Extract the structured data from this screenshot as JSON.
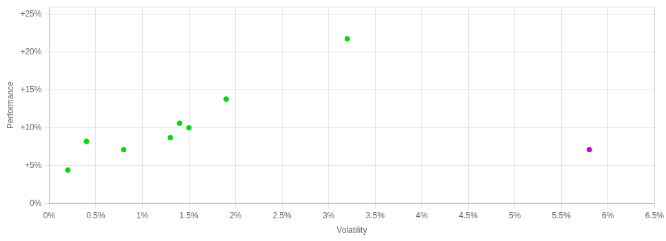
{
  "chart_data": {
    "type": "scatter",
    "x_label": "Volatility",
    "y_label": "Performance",
    "xlim": [
      0,
      0.065
    ],
    "ylim": [
      0,
      0.26
    ],
    "xticks": [
      {
        "value": 0.0,
        "label": "0%"
      },
      {
        "value": 0.005,
        "label": "0.5%"
      },
      {
        "value": 0.01,
        "label": "1%"
      },
      {
        "value": 0.015,
        "label": "1.5%"
      },
      {
        "value": 0.02,
        "label": "2%"
      },
      {
        "value": 0.025,
        "label": "2.5%"
      },
      {
        "value": 0.03,
        "label": "3%"
      },
      {
        "value": 0.035,
        "label": "3.5%"
      },
      {
        "value": 0.04,
        "label": "4%"
      },
      {
        "value": 0.045,
        "label": "4.5%"
      },
      {
        "value": 0.05,
        "label": "5%"
      },
      {
        "value": 0.055,
        "label": "5.5%"
      },
      {
        "value": 0.06,
        "label": "6%"
      },
      {
        "value": 0.065,
        "label": "6.5%"
      }
    ],
    "yticks": [
      {
        "value": 0.0,
        "label": "0%"
      },
      {
        "value": 0.05,
        "label": "+5%"
      },
      {
        "value": 0.1,
        "label": "+10%"
      },
      {
        "value": 0.15,
        "label": "+15%"
      },
      {
        "value": 0.2,
        "label": "+20%"
      },
      {
        "value": 0.25,
        "label": "+25%"
      }
    ],
    "grid": true,
    "series": [
      {
        "color": "#00dd00",
        "x": [
          0.002,
          0.004,
          0.008,
          0.013,
          0.014,
          0.015,
          0.019,
          0.032
        ],
        "values": [
          0.044,
          0.082,
          0.071,
          0.087,
          0.106,
          0.1,
          0.138,
          0.218
        ]
      },
      {
        "color": "#cc00cc",
        "x": [
          0.058
        ],
        "values": [
          0.071
        ]
      }
    ]
  }
}
